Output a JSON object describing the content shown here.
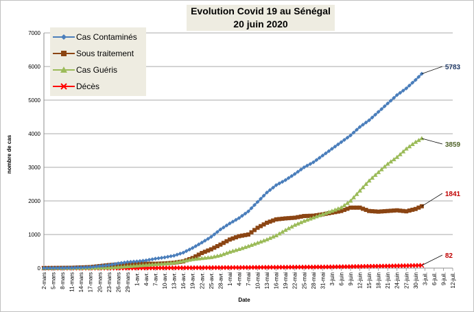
{
  "chart_data": {
    "type": "line",
    "title": "Evolution Covid 19  au Sénégal",
    "subtitle": "20 juin 2020",
    "xlabel": "Date",
    "ylabel": "nombre de cas",
    "ylim": [
      0,
      7000
    ],
    "yticks": [
      0,
      1000,
      2000,
      3000,
      4000,
      5000,
      6000,
      7000
    ],
    "x_tick_labels": [
      "2-mars",
      "5-mars",
      "8-mars",
      "11-mars",
      "14-mars",
      "17-mars",
      "20-mars",
      "23-mars",
      "26-mars",
      "29-mars",
      "1-avr.",
      "4-avr.",
      "7-avr.",
      "10-avr.",
      "13-avr.",
      "16-avr.",
      "19-avr.",
      "22-avr.",
      "25-avr.",
      "28-avr.",
      "1-mai",
      "4-mai",
      "7-mai",
      "10-mai",
      "13-mai",
      "16-mai",
      "19-mai",
      "22-mai",
      "25-mai",
      "28-mai",
      "31-mai",
      "3-juin",
      "6-juin",
      "9-juin",
      "12-juin",
      "15-juin",
      "18-juin",
      "21-juin",
      "24-juin",
      "27-juin",
      "30-juin",
      "3-juil.",
      "6-juil.",
      "9-juil.",
      "12-juil."
    ],
    "legend_position": "top-left",
    "grid": "horizontal",
    "series": [
      {
        "name": "Cas Contaminés",
        "color": "#4a7ebb",
        "marker": "diamond",
        "end_label": "5783",
        "points": [
          [
            0,
            1
          ],
          [
            9,
            10
          ],
          [
            15,
            30
          ],
          [
            18,
            60
          ],
          [
            21,
            90
          ],
          [
            24,
            140
          ],
          [
            27,
            180
          ],
          [
            30,
            200
          ],
          [
            33,
            230
          ],
          [
            36,
            280
          ],
          [
            39,
            320
          ],
          [
            42,
            370
          ],
          [
            45,
            460
          ],
          [
            48,
            600
          ],
          [
            51,
            760
          ],
          [
            54,
            930
          ],
          [
            57,
            1150
          ],
          [
            60,
            1330
          ],
          [
            63,
            1490
          ],
          [
            66,
            1690
          ],
          [
            69,
            1970
          ],
          [
            72,
            2250
          ],
          [
            75,
            2470
          ],
          [
            78,
            2620
          ],
          [
            81,
            2800
          ],
          [
            84,
            3000
          ],
          [
            87,
            3150
          ],
          [
            90,
            3350
          ],
          [
            93,
            3550
          ],
          [
            96,
            3750
          ],
          [
            99,
            3950
          ],
          [
            102,
            4200
          ],
          [
            105,
            4400
          ],
          [
            108,
            4650
          ],
          [
            111,
            4900
          ],
          [
            114,
            5150
          ],
          [
            117,
            5350
          ],
          [
            120,
            5600
          ],
          [
            122,
            5783
          ]
        ]
      },
      {
        "name": "Sous traitement",
        "color": "#8b4513",
        "marker": "square",
        "end_label": "1841",
        "points": [
          [
            0,
            1
          ],
          [
            9,
            10
          ],
          [
            15,
            30
          ],
          [
            18,
            60
          ],
          [
            21,
            90
          ],
          [
            24,
            110
          ],
          [
            27,
            130
          ],
          [
            30,
            140
          ],
          [
            33,
            130
          ],
          [
            36,
            130
          ],
          [
            39,
            140
          ],
          [
            42,
            160
          ],
          [
            45,
            200
          ],
          [
            48,
            300
          ],
          [
            51,
            450
          ],
          [
            54,
            560
          ],
          [
            57,
            700
          ],
          [
            60,
            850
          ],
          [
            63,
            950
          ],
          [
            66,
            1000
          ],
          [
            69,
            1200
          ],
          [
            72,
            1350
          ],
          [
            75,
            1450
          ],
          [
            78,
            1480
          ],
          [
            81,
            1500
          ],
          [
            84,
            1550
          ],
          [
            87,
            1560
          ],
          [
            90,
            1600
          ],
          [
            93,
            1650
          ],
          [
            96,
            1700
          ],
          [
            99,
            1800
          ],
          [
            102,
            1800
          ],
          [
            105,
            1700
          ],
          [
            108,
            1680
          ],
          [
            111,
            1700
          ],
          [
            114,
            1720
          ],
          [
            117,
            1690
          ],
          [
            120,
            1760
          ],
          [
            122,
            1841
          ]
        ]
      },
      {
        "name": "Cas Guéris",
        "color": "#9bbb59",
        "marker": "triangle",
        "end_label": "3859",
        "points": [
          [
            0,
            0
          ],
          [
            15,
            0
          ],
          [
            21,
            10
          ],
          [
            24,
            30
          ],
          [
            27,
            50
          ],
          [
            30,
            70
          ],
          [
            33,
            90
          ],
          [
            36,
            110
          ],
          [
            39,
            130
          ],
          [
            42,
            160
          ],
          [
            45,
            210
          ],
          [
            48,
            260
          ],
          [
            51,
            290
          ],
          [
            54,
            320
          ],
          [
            57,
            380
          ],
          [
            60,
            480
          ],
          [
            63,
            560
          ],
          [
            66,
            650
          ],
          [
            69,
            750
          ],
          [
            72,
            850
          ],
          [
            75,
            970
          ],
          [
            78,
            1130
          ],
          [
            81,
            1280
          ],
          [
            84,
            1400
          ],
          [
            87,
            1500
          ],
          [
            90,
            1600
          ],
          [
            93,
            1700
          ],
          [
            96,
            1800
          ],
          [
            99,
            2000
          ],
          [
            102,
            2300
          ],
          [
            105,
            2600
          ],
          [
            108,
            2850
          ],
          [
            111,
            3100
          ],
          [
            114,
            3300
          ],
          [
            117,
            3550
          ],
          [
            120,
            3750
          ],
          [
            122,
            3859
          ]
        ]
      },
      {
        "name": "Décès",
        "color": "#ff0000",
        "marker": "x",
        "end_label": "82",
        "points": [
          [
            0,
            0
          ],
          [
            24,
            0
          ],
          [
            30,
            2
          ],
          [
            36,
            5
          ],
          [
            45,
            9
          ],
          [
            51,
            12
          ],
          [
            57,
            15
          ],
          [
            63,
            18
          ],
          [
            69,
            22
          ],
          [
            75,
            26
          ],
          [
            81,
            30
          ],
          [
            87,
            33
          ],
          [
            93,
            38
          ],
          [
            99,
            45
          ],
          [
            105,
            55
          ],
          [
            111,
            62
          ],
          [
            117,
            72
          ],
          [
            122,
            82
          ]
        ]
      }
    ]
  }
}
